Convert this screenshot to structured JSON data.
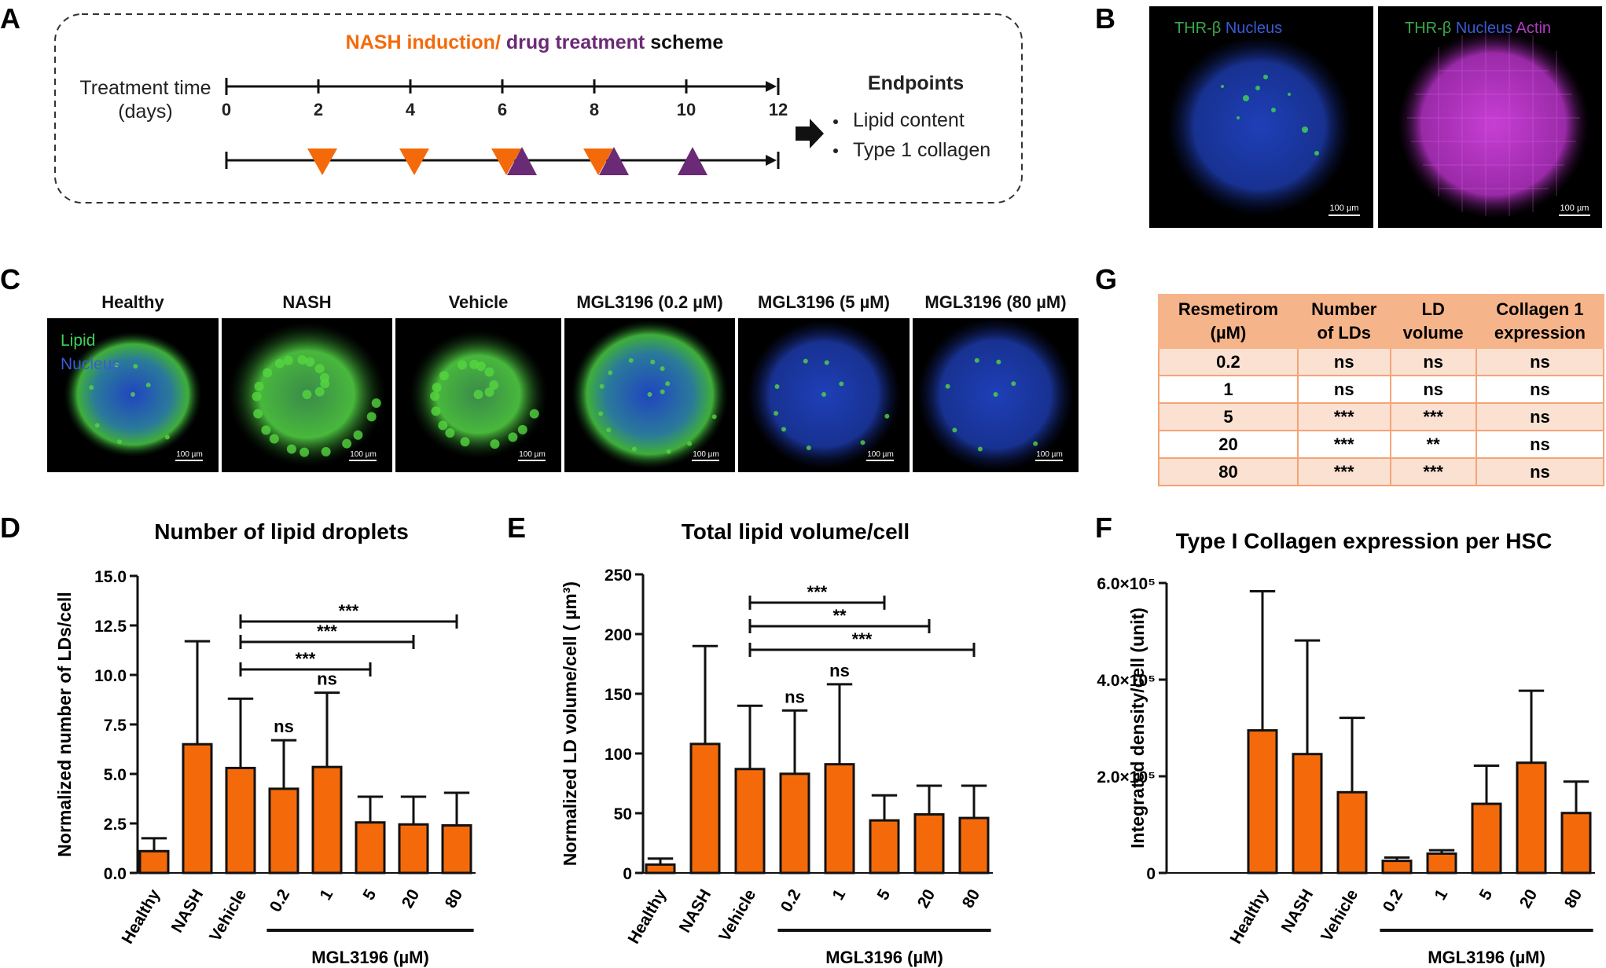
{
  "panel_letters": {
    "A": "A",
    "B": "B",
    "C": "C",
    "D": "D",
    "E": "E",
    "F": "F",
    "G": "G"
  },
  "panel_a": {
    "title_part1": "NASH induction",
    "title_sep": "/ ",
    "title_part2": "drug treatment",
    "title_part3": " scheme",
    "axis_label_line1": "Treatment time",
    "axis_label_line2": "(days)",
    "ticks": [
      "0",
      "2",
      "4",
      "6",
      "8",
      "10",
      "12"
    ],
    "nash_induction_days": [
      2,
      4,
      6,
      8
    ],
    "drug_treatment_days": [
      6,
      8,
      10
    ],
    "endpoints_title": "Endpoints",
    "endpoints": [
      "Lipid content",
      "Type 1 collagen"
    ],
    "colors": {
      "nash": "#f46a0a",
      "drug": "#6b2a75"
    }
  },
  "panel_b": {
    "images": [
      {
        "label_parts": [
          {
            "text": "THR-β",
            "color": "#3aa84a"
          },
          {
            "text": " Nucleus",
            "color": "#3b5bd6"
          }
        ],
        "scale": "100 µm"
      },
      {
        "label_parts": [
          {
            "text": "THR-β",
            "color": "#3aa84a"
          },
          {
            "text": " Nucleus",
            "color": "#3b5bd6"
          },
          {
            "text": " Actin",
            "color": "#b13bc2"
          }
        ],
        "scale": "100 µm"
      }
    ]
  },
  "panel_c": {
    "headers": [
      "Healthy",
      "NASH",
      "Vehicle",
      "MGL3196 (0.2 µM)",
      "MGL3196 (5 µM)",
      "MGL3196 (80 µM)"
    ],
    "legend_lipid": "Lipid",
    "legend_nucleus": "Nucleus",
    "scale": "100 µm"
  },
  "panel_g": {
    "header": [
      "Resmetirom\n(µM)",
      "Number\nof LDs",
      "LD\nvolume",
      "Collagen 1\nexpression"
    ],
    "rows": [
      [
        "0.2",
        "ns",
        "ns",
        "ns"
      ],
      [
        "1",
        "ns",
        "ns",
        "ns"
      ],
      [
        "5",
        "***",
        "***",
        "ns"
      ],
      [
        "20",
        "***",
        "**",
        "ns"
      ],
      [
        "80",
        "***",
        "***",
        "ns"
      ]
    ]
  },
  "chart_data": [
    {
      "type": "bar",
      "title": "Number of lipid droplets",
      "ylabel": "Normalized number of LDs/cell",
      "xlabel": "MGL3196 (µM)",
      "categories": [
        "Healthy",
        "NASH",
        "Vehicle",
        "0.2",
        "1",
        "5",
        "20",
        "80"
      ],
      "values": [
        1.1,
        6.5,
        5.3,
        4.25,
        5.35,
        2.55,
        2.45,
        2.4
      ],
      "error_upper": [
        1.75,
        11.7,
        8.8,
        6.7,
        9.1,
        3.85,
        3.85,
        4.05
      ],
      "ylim": [
        0,
        15
      ],
      "yticks": [
        "0.0",
        "2.5",
        "5.0",
        "7.5",
        "10.0",
        "12.5",
        "15.0"
      ],
      "annotations": [
        {
          "text": "ns",
          "category": "0.2"
        },
        {
          "text": "ns",
          "category": "1"
        }
      ],
      "brackets": [
        {
          "from": "Vehicle",
          "to": "5",
          "text": "***"
        },
        {
          "from": "Vehicle",
          "to": "20",
          "text": "***"
        },
        {
          "from": "Vehicle",
          "to": "80",
          "text": "***"
        }
      ],
      "bar_color": "#f46a0a"
    },
    {
      "type": "bar",
      "title": "Total lipid volume/cell",
      "ylabel": "Normalized LD volume/cell ( µm³)",
      "xlabel": "MGL3196 (µM)",
      "categories": [
        "Healthy",
        "NASH",
        "Vehicle",
        "0.2",
        "1",
        "5",
        "20",
        "80"
      ],
      "values": [
        7,
        108,
        87,
        83,
        91,
        44,
        49,
        46
      ],
      "error_upper": [
        12,
        190,
        140,
        136,
        158,
        65,
        73,
        73
      ],
      "ylim": [
        0,
        250
      ],
      "yticks": [
        "0",
        "50",
        "100",
        "150",
        "200",
        "250"
      ],
      "annotations": [
        {
          "text": "ns",
          "category": "0.2"
        },
        {
          "text": "ns",
          "category": "1"
        }
      ],
      "brackets": [
        {
          "from": "Vehicle",
          "to": "5",
          "text": "***"
        },
        {
          "from": "Vehicle",
          "to": "20",
          "text": "**"
        },
        {
          "from": "Vehicle",
          "to": "80",
          "text": "***"
        }
      ],
      "bar_color": "#f46a0a"
    },
    {
      "type": "bar",
      "title": "Type I Collagen expression per HSC",
      "ylabel": "Integrated density/cell (unit)",
      "xlabel": "MGL3196 (µM)",
      "categories": [
        "Healthy",
        "NASH",
        "Vehicle",
        "0.2",
        "1",
        "5",
        "20",
        "80"
      ],
      "values": [
        295000,
        246000,
        167000,
        25000,
        40000,
        143000,
        228000,
        124000
      ],
      "error_upper": [
        583000,
        481000,
        321000,
        32000,
        47000,
        222000,
        377000,
        189000
      ],
      "ylim": [
        0,
        600000
      ],
      "yticks": [
        "0",
        "2.0×10⁵",
        "4.0×10⁵",
        "6.0×10⁵"
      ],
      "bar_color": "#f46a0a"
    }
  ]
}
